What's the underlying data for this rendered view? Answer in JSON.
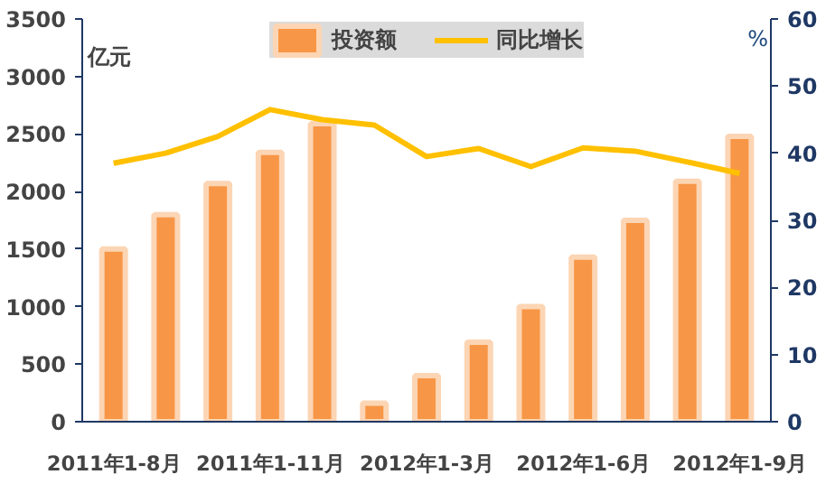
{
  "chart_data": {
    "type": "bar",
    "ylabel": "亿元",
    "y2label": "%",
    "categories": [
      "2011年1-8月",
      null,
      null,
      "2011年1-11月",
      null,
      null,
      "2012年1-3月",
      null,
      null,
      "2012年1-6月",
      null,
      null,
      "2012年1-9月"
    ],
    "series": [
      {
        "name": "投资额",
        "color": "#f79646",
        "values": [
          1500,
          1800,
          2070,
          2340,
          2590,
          160,
          400,
          690,
          1000,
          1430,
          1750,
          2090,
          2480
        ]
      },
      {
        "name": "同比增长",
        "type": "line",
        "axis": "y2",
        "color": "#ffc000",
        "values": [
          38.5,
          40,
          42.5,
          46.5,
          45,
          44.2,
          39.5,
          40.7,
          38,
          40.8,
          40.3,
          38.7,
          37
        ]
      }
    ],
    "ylim": [
      0,
      3500
    ],
    "yticks": [
      0,
      500,
      1000,
      1500,
      2000,
      2500,
      3000,
      3500
    ],
    "y2lim": [
      0,
      60
    ],
    "y2ticks": [
      0,
      10,
      20,
      30,
      40,
      50,
      60
    ],
    "legend": "top",
    "grid": false
  }
}
